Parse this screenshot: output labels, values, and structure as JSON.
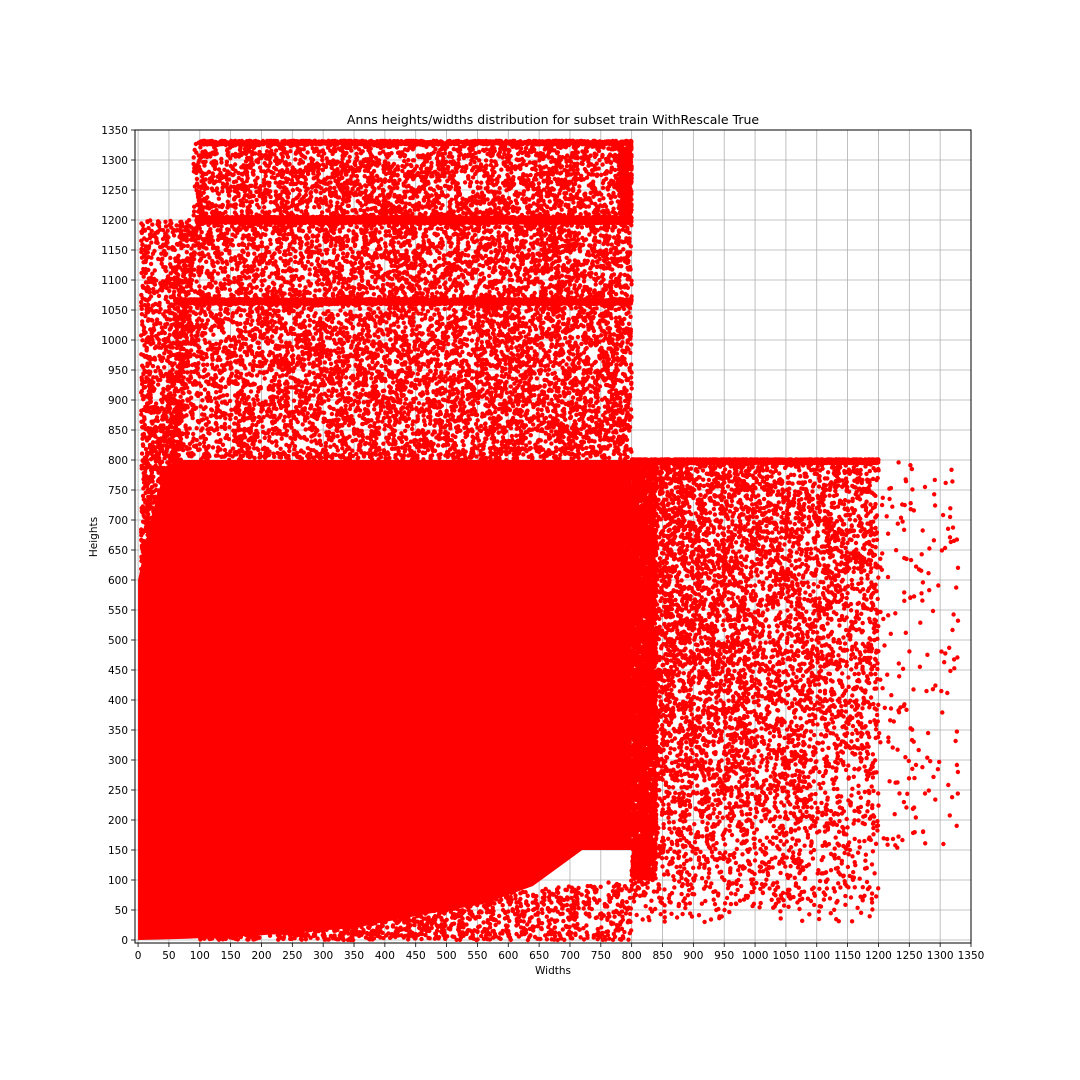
{
  "chart_data": {
    "type": "scatter",
    "title": "Anns heights/widths distribution for subset train WithRescale True",
    "xlabel": "Widths",
    "ylabel": "Heights",
    "xlim": [
      -5,
      1350
    ],
    "ylim": [
      -5,
      1350
    ],
    "xticks": [
      0,
      50,
      100,
      150,
      200,
      250,
      300,
      350,
      400,
      450,
      500,
      550,
      600,
      650,
      700,
      750,
      800,
      850,
      900,
      950,
      1000,
      1050,
      1100,
      1150,
      1200,
      1250,
      1300,
      1350
    ],
    "yticks": [
      0,
      50,
      100,
      150,
      200,
      250,
      300,
      350,
      400,
      450,
      500,
      550,
      600,
      650,
      700,
      750,
      800,
      850,
      900,
      950,
      1000,
      1050,
      1100,
      1150,
      1200,
      1250,
      1300,
      1350
    ],
    "grid": true,
    "marker_color": "#ff0000",
    "series": [
      {
        "regions": [
          {
            "x": [
              0,
              800
            ],
            "y": [
              0,
              1330
            ],
            "dense_band_y": [
              0,
              800
            ],
            "sparse_above_y": [
              1200,
              1330
            ]
          },
          {
            "x": [
              800,
              1200
            ],
            "y": [
              0,
              800
            ]
          },
          {
            "x": [
              1200,
              1330
            ],
            "y": [
              50,
              800
            ],
            "sparse": true
          }
        ],
        "note_lines": [
          {
            "y": 1200,
            "x": [
              100,
              800
            ]
          },
          {
            "y": 1330,
            "x": [
              100,
              800
            ]
          },
          {
            "y": 800,
            "x": [
              800,
              1200
            ]
          },
          {
            "y": 1065,
            "x": [
              50,
              800
            ]
          }
        ]
      }
    ]
  }
}
